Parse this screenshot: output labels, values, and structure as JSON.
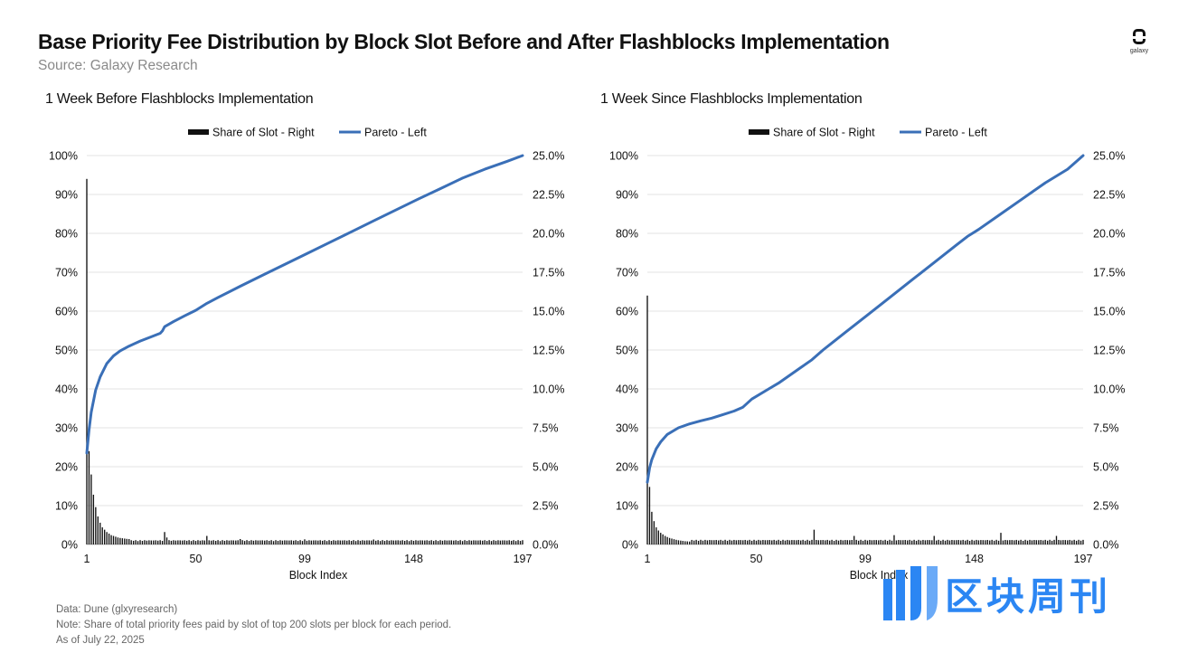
{
  "header": {
    "title": "Base Priority Fee Distribution by Block Slot Before and After Flashblocks Implementation",
    "source": "Source: Galaxy Research",
    "logo_text": "galaxy"
  },
  "legend": {
    "bar_label": "Share of Slot - Right",
    "line_label": "Pareto - Left"
  },
  "colors": {
    "line": "#3a6fb7",
    "bar": "#111111",
    "grid": "#e3e3e3",
    "watermark": "#2b86f3"
  },
  "chart_data": [
    {
      "type": "bar+line",
      "title": "1 Week Before Flashblocks Implementation",
      "xlabel": "Block Index",
      "x_ticks": [
        "1",
        "50",
        "99",
        "148",
        "197"
      ],
      "x_range": [
        1,
        197
      ],
      "y_left_ticks": [
        "0%",
        "10%",
        "20%",
        "30%",
        "40%",
        "50%",
        "60%",
        "70%",
        "80%",
        "90%",
        "100%"
      ],
      "y_right_ticks": [
        "0.0%",
        "2.5%",
        "5.0%",
        "7.5%",
        "10.0%",
        "12.5%",
        "15.0%",
        "17.5%",
        "20.0%",
        "22.5%",
        "25.0%"
      ],
      "y_left_range": [
        0,
        100
      ],
      "y_right_range": [
        0,
        25
      ],
      "bar_head": [
        23.5,
        6.0,
        4.5,
        3.2,
        2.4,
        1.8,
        1.4,
        1.1,
        0.95,
        0.8,
        0.7,
        0.6,
        0.55,
        0.5,
        0.45,
        0.42,
        0.4,
        0.38,
        0.36,
        0.35
      ],
      "bar_tail_level": 0.28,
      "bar_spikes": [
        [
          36,
          0.8
        ],
        [
          55,
          0.55
        ],
        [
          37,
          0.45
        ],
        [
          70,
          0.35
        ],
        [
          99,
          0.33
        ],
        [
          130,
          0.32
        ]
      ],
      "pareto": [
        [
          1,
          23.5
        ],
        [
          2,
          29.5
        ],
        [
          3,
          34.0
        ],
        [
          5,
          39.7
        ],
        [
          7,
          43.1
        ],
        [
          10,
          46.5
        ],
        [
          13,
          48.5
        ],
        [
          16,
          49.8
        ],
        [
          20,
          51.0
        ],
        [
          25,
          52.3
        ],
        [
          30,
          53.4
        ],
        [
          34,
          54.3
        ],
        [
          35,
          54.9
        ],
        [
          36,
          56.0
        ],
        [
          40,
          57.3
        ],
        [
          45,
          58.8
        ],
        [
          50,
          60.2
        ],
        [
          55,
          62.0
        ],
        [
          60,
          63.5
        ],
        [
          70,
          66.4
        ],
        [
          80,
          69.2
        ],
        [
          90,
          72.0
        ],
        [
          100,
          74.8
        ],
        [
          110,
          77.6
        ],
        [
          120,
          80.4
        ],
        [
          130,
          83.2
        ],
        [
          140,
          86.0
        ],
        [
          150,
          88.8
        ],
        [
          160,
          91.5
        ],
        [
          170,
          94.2
        ],
        [
          180,
          96.5
        ],
        [
          190,
          98.5
        ],
        [
          197,
          100
        ]
      ]
    },
    {
      "type": "bar+line",
      "title": "1 Week Since Flashblocks Implementation",
      "xlabel": "Block Index",
      "x_ticks": [
        "1",
        "50",
        "99",
        "148",
        "197"
      ],
      "x_range": [
        1,
        197
      ],
      "y_left_ticks": [
        "0%",
        "10%",
        "20%",
        "30%",
        "40%",
        "50%",
        "60%",
        "70%",
        "80%",
        "90%",
        "100%"
      ],
      "y_right_ticks": [
        "0.0%",
        "2.5%",
        "5.0%",
        "7.5%",
        "10.0%",
        "12.5%",
        "15.0%",
        "17.5%",
        "20.0%",
        "22.5%",
        "25.0%"
      ],
      "y_left_range": [
        0,
        100
      ],
      "y_right_range": [
        0,
        25
      ],
      "bar_head": [
        16.0,
        3.7,
        2.1,
        1.5,
        1.1,
        0.9,
        0.75,
        0.65,
        0.55,
        0.48,
        0.42,
        0.38,
        0.34,
        0.3,
        0.27,
        0.25,
        0.23,
        0.21,
        0.2,
        0.19
      ],
      "bar_tail_level": 0.3,
      "bar_spikes": [
        [
          76,
          0.95
        ],
        [
          160,
          0.75
        ],
        [
          112,
          0.6
        ],
        [
          94,
          0.55
        ],
        [
          130,
          0.55
        ],
        [
          185,
          0.55
        ]
      ],
      "pareto": [
        [
          1,
          16.0
        ],
        [
          2,
          19.7
        ],
        [
          3,
          21.8
        ],
        [
          5,
          24.6
        ],
        [
          7,
          26.4
        ],
        [
          10,
          28.3
        ],
        [
          15,
          30.0
        ],
        [
          20,
          31.0
        ],
        [
          25,
          31.8
        ],
        [
          30,
          32.5
        ],
        [
          35,
          33.4
        ],
        [
          40,
          34.3
        ],
        [
          44,
          35.3
        ],
        [
          48,
          37.4
        ],
        [
          55,
          39.8
        ],
        [
          60,
          41.5
        ],
        [
          70,
          45.5
        ],
        [
          75,
          47.5
        ],
        [
          80,
          50.0
        ],
        [
          90,
          54.5
        ],
        [
          100,
          59.0
        ],
        [
          110,
          63.5
        ],
        [
          120,
          68.0
        ],
        [
          130,
          72.5
        ],
        [
          140,
          77.0
        ],
        [
          145,
          79.2
        ],
        [
          150,
          81.0
        ],
        [
          160,
          85.0
        ],
        [
          170,
          89.0
        ],
        [
          180,
          93.0
        ],
        [
          190,
          96.5
        ],
        [
          197,
          100
        ]
      ]
    }
  ],
  "footer": {
    "data": "Data: Dune (glxyresearch)",
    "note": "Note: Share of total priority fees paid by slot of top 200 slots per block for each period.",
    "asof": "As of July 22, 2025"
  },
  "watermark": {
    "text": "区块周刊"
  }
}
